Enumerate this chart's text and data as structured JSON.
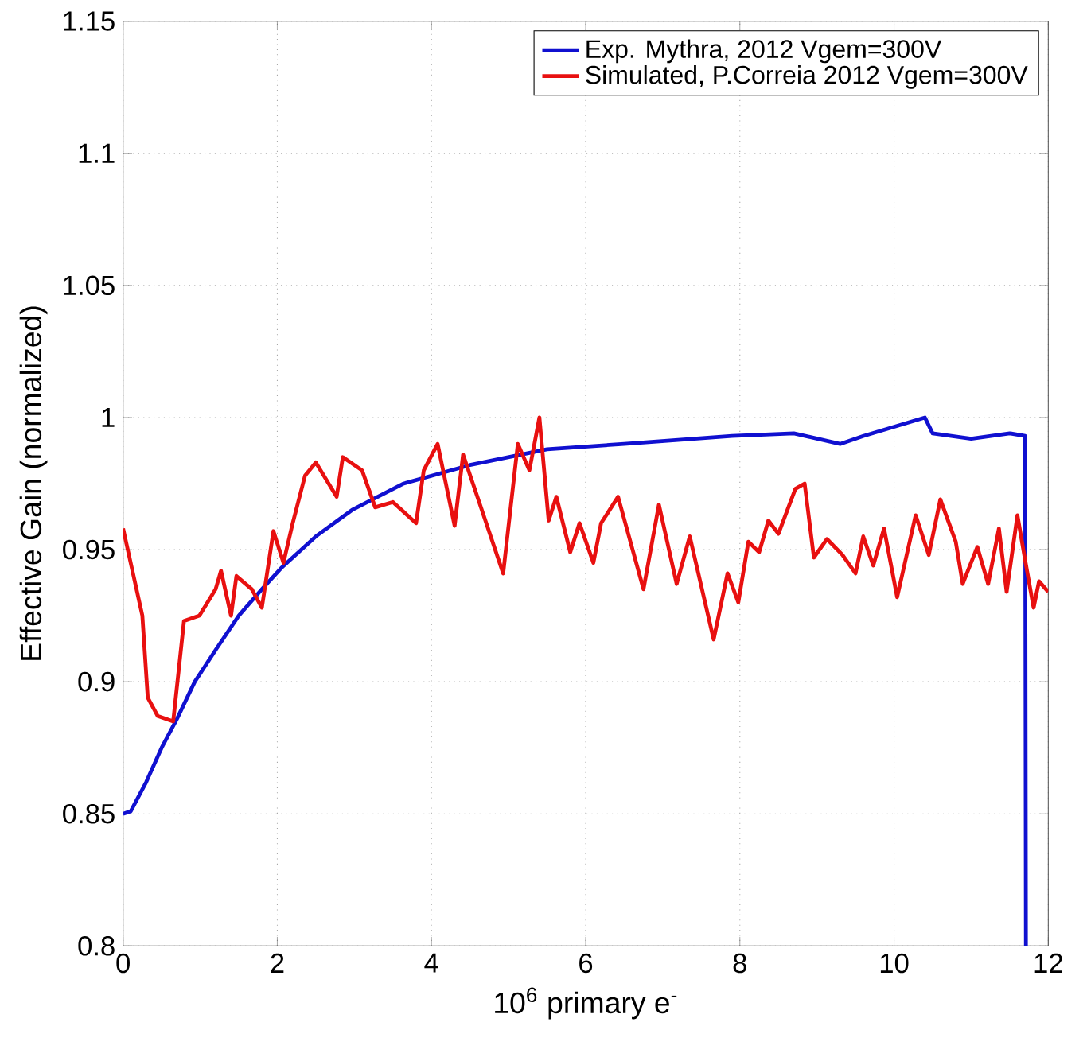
{
  "chart_data": {
    "type": "line",
    "xlabel": "10$^{6}$ primary e$^{-}$",
    "ylabel": "Effective Gain (normalized)",
    "xlim": [
      0,
      12
    ],
    "ylim": [
      0.8,
      1.15
    ],
    "xticks": [
      0,
      2,
      4,
      6,
      8,
      10,
      12
    ],
    "yticks": [
      0.8,
      0.85,
      0.9,
      0.95,
      1,
      1.05,
      1.1,
      1.15
    ],
    "grid": true,
    "legend": "top right",
    "line_style": "solid",
    "marker": "none",
    "series": [
      {
        "name": "Exp. Mythra, 2012 Vgem=300V",
        "color": "#1010d0",
        "x": [
          0,
          0.1,
          0.3,
          0.5,
          0.7,
          0.93,
          1.2,
          1.5,
          1.8,
          2.05,
          2.5,
          2.97,
          3.64,
          4.5,
          5.5,
          6.5,
          7.9,
          8.7,
          9.3,
          9.6,
          10.4,
          10.5,
          11.0,
          11.5,
          11.7,
          11.71
        ],
        "values": [
          0.85,
          0.851,
          0.862,
          0.875,
          0.886,
          0.9,
          0.912,
          0.925,
          0.935,
          0.943,
          0.955,
          0.965,
          0.975,
          0.982,
          0.988,
          0.99,
          0.993,
          0.994,
          0.99,
          0.993,
          1.0,
          0.994,
          0.992,
          0.994,
          0.993,
          0.8
        ]
      },
      {
        "name": "Simulated, P.Correia 2012 Vgem=300V",
        "color": "#e81010",
        "x": [
          0,
          0.25,
          0.32,
          0.45,
          0.65,
          0.79,
          0.99,
          1.2,
          1.27,
          1.4,
          1.47,
          1.67,
          1.8,
          1.95,
          2.08,
          2.2,
          2.36,
          2.5,
          2.77,
          2.85,
          3.1,
          3.27,
          3.5,
          3.8,
          3.9,
          4.08,
          4.3,
          4.41,
          4.63,
          4.93,
          5.12,
          5.27,
          5.4,
          5.52,
          5.62,
          5.8,
          5.92,
          6.1,
          6.2,
          6.42,
          6.75,
          6.95,
          7.18,
          7.35,
          7.66,
          7.84,
          7.98,
          8.11,
          8.25,
          8.37,
          8.5,
          8.72,
          8.84,
          8.96,
          9.13,
          9.33,
          9.5,
          9.6,
          9.73,
          9.87,
          10.04,
          10.28,
          10.45,
          10.6,
          10.8,
          10.89,
          11.08,
          11.22,
          11.36,
          11.46,
          11.6,
          11.7,
          11.81,
          11.88,
          12.0
        ],
        "values": [
          0.958,
          0.925,
          0.894,
          0.887,
          0.885,
          0.923,
          0.925,
          0.935,
          0.942,
          0.925,
          0.94,
          0.935,
          0.928,
          0.957,
          0.945,
          0.96,
          0.978,
          0.983,
          0.97,
          0.985,
          0.98,
          0.966,
          0.968,
          0.96,
          0.98,
          0.99,
          0.959,
          0.986,
          0.967,
          0.941,
          0.99,
          0.98,
          1.0,
          0.961,
          0.97,
          0.949,
          0.96,
          0.945,
          0.96,
          0.97,
          0.935,
          0.967,
          0.937,
          0.955,
          0.916,
          0.941,
          0.93,
          0.953,
          0.949,
          0.961,
          0.956,
          0.973,
          0.975,
          0.947,
          0.954,
          0.948,
          0.941,
          0.955,
          0.944,
          0.958,
          0.932,
          0.963,
          0.948,
          0.969,
          0.953,
          0.937,
          0.951,
          0.937,
          0.958,
          0.934,
          0.963,
          0.946,
          0.928,
          0.938,
          0.934
        ]
      }
    ]
  }
}
